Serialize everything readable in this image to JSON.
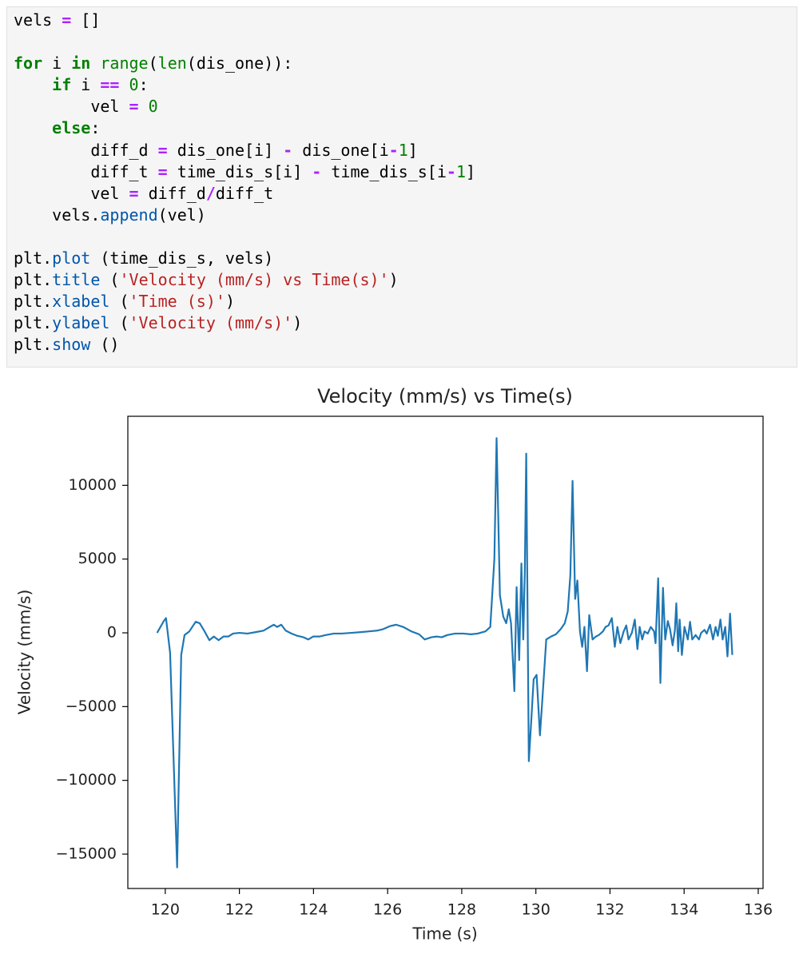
{
  "code": {
    "lines": [
      [
        {
          "text": "vels "
        },
        {
          "text": "=",
          "color": "#aa22ff",
          "bold": true
        },
        {
          "text": " []"
        }
      ],
      [],
      [
        {
          "text": "for",
          "color": "#008000",
          "bold": true
        },
        {
          "text": " i "
        },
        {
          "text": "in",
          "color": "#008000",
          "bold": true
        },
        {
          "text": " "
        },
        {
          "text": "range",
          "color": "#008000"
        },
        {
          "text": "("
        },
        {
          "text": "len",
          "color": "#008000"
        },
        {
          "text": "(dis_one)):"
        }
      ],
      [
        {
          "text": "    "
        },
        {
          "text": "if",
          "color": "#008000",
          "bold": true
        },
        {
          "text": " i "
        },
        {
          "text": "==",
          "color": "#aa22ff",
          "bold": true
        },
        {
          "text": " "
        },
        {
          "text": "0",
          "color": "#008000"
        },
        {
          "text": ":"
        }
      ],
      [
        {
          "text": "        vel "
        },
        {
          "text": "=",
          "color": "#aa22ff",
          "bold": true
        },
        {
          "text": " "
        },
        {
          "text": "0",
          "color": "#008000"
        }
      ],
      [
        {
          "text": "    "
        },
        {
          "text": "else",
          "color": "#008000",
          "bold": true
        },
        {
          "text": ":"
        }
      ],
      [
        {
          "text": "        diff_d "
        },
        {
          "text": "=",
          "color": "#aa22ff",
          "bold": true
        },
        {
          "text": " dis_one[i] "
        },
        {
          "text": "-",
          "color": "#aa22ff",
          "bold": true
        },
        {
          "text": " dis_one[i"
        },
        {
          "text": "-",
          "color": "#aa22ff",
          "bold": true
        },
        {
          "text": "1",
          "color": "#008000"
        },
        {
          "text": "]"
        }
      ],
      [
        {
          "text": "        diff_t "
        },
        {
          "text": "=",
          "color": "#aa22ff",
          "bold": true
        },
        {
          "text": " time_dis_s[i] "
        },
        {
          "text": "-",
          "color": "#aa22ff",
          "bold": true
        },
        {
          "text": " time_dis_s[i"
        },
        {
          "text": "-",
          "color": "#aa22ff",
          "bold": true
        },
        {
          "text": "1",
          "color": "#008000"
        },
        {
          "text": "]"
        }
      ],
      [
        {
          "text": "        vel "
        },
        {
          "text": "=",
          "color": "#aa22ff",
          "bold": true
        },
        {
          "text": " diff_d"
        },
        {
          "text": "/",
          "color": "#aa22ff",
          "bold": true
        },
        {
          "text": "diff_t"
        }
      ],
      [
        {
          "text": "    vels."
        },
        {
          "text": "append",
          "color": "#0055aa"
        },
        {
          "text": "(vel)"
        }
      ],
      [],
      [
        {
          "text": "plt."
        },
        {
          "text": "plot",
          "color": "#0055aa"
        },
        {
          "text": " (time_dis_s, vels)"
        }
      ],
      [
        {
          "text": "plt."
        },
        {
          "text": "title",
          "color": "#0055aa"
        },
        {
          "text": " ("
        },
        {
          "text": "'Velocity (mm/s) vs Time(s)'",
          "color": "#ba2121"
        },
        {
          "text": ")"
        }
      ],
      [
        {
          "text": "plt."
        },
        {
          "text": "xlabel",
          "color": "#0055aa"
        },
        {
          "text": " ("
        },
        {
          "text": "'Time (s)'",
          "color": "#ba2121"
        },
        {
          "text": ")"
        }
      ],
      [
        {
          "text": "plt."
        },
        {
          "text": "ylabel",
          "color": "#0055aa"
        },
        {
          "text": " ("
        },
        {
          "text": "'Velocity (mm/s)'",
          "color": "#ba2121"
        },
        {
          "text": ")"
        }
      ],
      [
        {
          "text": "plt."
        },
        {
          "text": "show",
          "color": "#0055aa"
        },
        {
          "text": " ()"
        }
      ]
    ]
  },
  "chart_data": {
    "type": "line",
    "title": "Velocity (mm/s) vs Time(s)",
    "xlabel": "Time (s)",
    "ylabel": "Velocity (mm/s)",
    "color": "#1f77b4",
    "x": [
      119.78,
      119.96,
      120.02,
      120.13,
      120.32,
      120.43,
      120.52,
      120.65,
      120.82,
      120.93,
      121.06,
      121.19,
      121.31,
      121.44,
      121.57,
      121.7,
      121.83,
      122.0,
      122.22,
      122.44,
      122.65,
      122.82,
      122.93,
      123.02,
      123.13,
      123.25,
      123.41,
      123.56,
      123.73,
      123.86,
      123.99,
      124.16,
      124.33,
      124.55,
      124.76,
      125.02,
      125.28,
      125.5,
      125.71,
      125.88,
      126.06,
      126.23,
      126.42,
      126.64,
      126.85,
      127.0,
      127.18,
      127.33,
      127.46,
      127.61,
      127.82,
      128.04,
      128.25,
      128.43,
      128.64,
      128.77,
      128.88,
      128.94,
      129.03,
      129.12,
      129.2,
      129.27,
      129.33,
      129.42,
      129.48,
      129.55,
      129.61,
      129.66,
      129.7,
      129.74,
      129.81,
      129.87,
      129.94,
      130.02,
      130.11,
      130.19,
      130.28,
      130.41,
      130.54,
      130.67,
      130.78,
      130.86,
      130.93,
      130.99,
      131.06,
      131.12,
      131.19,
      131.25,
      131.31,
      131.38,
      131.44,
      131.53,
      131.62,
      131.7,
      131.81,
      131.88,
      131.96,
      132.05,
      132.13,
      132.2,
      132.28,
      132.37,
      132.44,
      132.5,
      132.59,
      132.67,
      132.74,
      132.8,
      132.87,
      132.93,
      133.02,
      133.1,
      133.19,
      133.23,
      133.3,
      133.36,
      133.43,
      133.49,
      133.56,
      133.62,
      133.69,
      133.75,
      133.79,
      133.84,
      133.88,
      133.94,
      134.01,
      134.1,
      134.16,
      134.22,
      134.31,
      134.4,
      134.46,
      134.55,
      134.61,
      134.7,
      134.78,
      134.85,
      134.91,
      134.98,
      135.04,
      135.11,
      135.17,
      135.24,
      135.3
    ],
    "values": [
      0,
      800,
      1000,
      -1350,
      -15900,
      -1500,
      -150,
      100,
      750,
      650,
      100,
      -500,
      -250,
      -500,
      -250,
      -250,
      -50,
      0,
      -50,
      50,
      150,
      400,
      550,
      400,
      550,
      150,
      -50,
      -200,
      -300,
      -450,
      -250,
      -250,
      -150,
      -50,
      -50,
      0,
      50,
      100,
      150,
      250,
      450,
      550,
      400,
      100,
      -100,
      -450,
      -300,
      -250,
      -300,
      -150,
      -50,
      -50,
      -100,
      -50,
      100,
      400,
      5000,
      13200,
      2550,
      1100,
      650,
      1600,
      650,
      -3950,
      3100,
      -1850,
      4700,
      -450,
      3900,
      12150,
      -8700,
      -6200,
      -3150,
      -2850,
      -6950,
      -3950,
      -450,
      -250,
      -100,
      250,
      650,
      1450,
      3900,
      10300,
      2300,
      3550,
      100,
      -950,
      400,
      -2600,
      1200,
      -450,
      -250,
      -150,
      100,
      400,
      500,
      1000,
      -950,
      400,
      -700,
      100,
      500,
      -450,
      0,
      900,
      -1100,
      400,
      -450,
      100,
      -50,
      400,
      100,
      -700,
      3700,
      -3400,
      3050,
      -450,
      800,
      250,
      -850,
      150,
      2000,
      -1250,
      900,
      -1500,
      400,
      -450,
      750,
      -450,
      -150,
      -450,
      0,
      200,
      -50,
      550,
      -450,
      400,
      -200,
      900,
      -450,
      400,
      -1600,
      1300,
      -1500
    ],
    "xlim": [
      118.99,
      136.13
    ],
    "ylim": [
      -17330,
      14680
    ],
    "xticks": [
      120,
      122,
      124,
      126,
      128,
      130,
      132,
      134,
      136
    ],
    "yticks": [
      {
        "value": -15000,
        "label": "−15000"
      },
      {
        "value": -10000,
        "label": "−10000"
      },
      {
        "value": -5000,
        "label": "−5000"
      },
      0,
      5000,
      10000
    ]
  }
}
